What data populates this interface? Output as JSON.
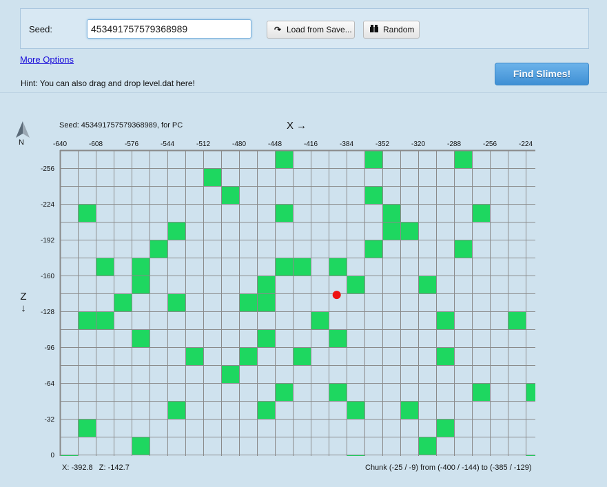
{
  "top_panel": {
    "seed_label": "Seed:",
    "seed_value": "453491757579368989",
    "load_button": "Load from Save...",
    "random_button": "Random"
  },
  "more_options_link": "More Options",
  "hint": "Hint: You can also drag and drop level.dat here!",
  "find_button": "Find Slimes!",
  "map": {
    "compass_letter": "N",
    "seed_caption": "Seed: 453491757579368989, for PC",
    "x_axis_label": "X →",
    "z_axis_label": "Z ↓",
    "x_ticks": [
      "-640",
      "-608",
      "-576",
      "-544",
      "-512",
      "-480",
      "-448",
      "-416",
      "-384",
      "-352",
      "-320",
      "-288",
      "-256",
      "-224"
    ],
    "z_ticks": [
      "-256",
      "-224",
      "-192",
      "-160",
      "-128",
      "-96",
      "-64",
      "-32",
      "0"
    ],
    "grid_start_block_x": -640,
    "grid_start_block_z": -272,
    "chunk_size_blocks": 16,
    "columns": 27,
    "rows": 18,
    "slime_chunks": [
      [
        12,
        0
      ],
      [
        17,
        0
      ],
      [
        22,
        0
      ],
      [
        8,
        1
      ],
      [
        9,
        2
      ],
      [
        17,
        2
      ],
      [
        1,
        3
      ],
      [
        12,
        3
      ],
      [
        18,
        3
      ],
      [
        23,
        3
      ],
      [
        6,
        4
      ],
      [
        18,
        4
      ],
      [
        19,
        4
      ],
      [
        5,
        5
      ],
      [
        17,
        5
      ],
      [
        22,
        5
      ],
      [
        2,
        6
      ],
      [
        4,
        6
      ],
      [
        12,
        6
      ],
      [
        13,
        6
      ],
      [
        15,
        6
      ],
      [
        4,
        7
      ],
      [
        11,
        7
      ],
      [
        16,
        7
      ],
      [
        20,
        7
      ],
      [
        3,
        8
      ],
      [
        6,
        8
      ],
      [
        10,
        8
      ],
      [
        11,
        8
      ],
      [
        1,
        9
      ],
      [
        2,
        9
      ],
      [
        14,
        9
      ],
      [
        21,
        9
      ],
      [
        25,
        9
      ],
      [
        4,
        10
      ],
      [
        11,
        10
      ],
      [
        15,
        10
      ],
      [
        7,
        11
      ],
      [
        10,
        11
      ],
      [
        13,
        11
      ],
      [
        21,
        11
      ],
      [
        9,
        12
      ],
      [
        12,
        13
      ],
      [
        15,
        13
      ],
      [
        23,
        13
      ],
      [
        26,
        13
      ],
      [
        6,
        14
      ],
      [
        11,
        14
      ],
      [
        16,
        14
      ],
      [
        19,
        14
      ],
      [
        1,
        15
      ],
      [
        21,
        15
      ],
      [
        4,
        16
      ],
      [
        20,
        16
      ],
      [
        0,
        17
      ],
      [
        16,
        17
      ],
      [
        26,
        17
      ]
    ],
    "player_marker": {
      "x": -392.8,
      "z": -142.7
    },
    "colors": {
      "slime": "#1ed760",
      "grid": "#8a8a8a",
      "marker": "#ee1111",
      "map_bg": "#cfe2ee"
    }
  },
  "status": {
    "coords": "X: -392.8   Z: -142.7",
    "chunk_info": "Chunk (-25 / -9) from (-400 / -144) to (-385 / -129)"
  }
}
